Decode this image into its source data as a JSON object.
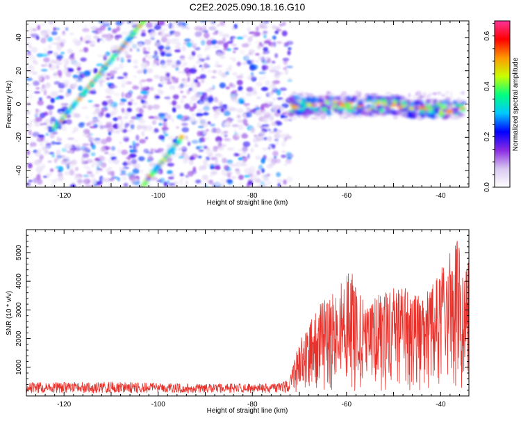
{
  "title": "C2E2.2025.090.18.16.G10",
  "chart_data": [
    {
      "type": "heatmap",
      "xlabel": "Height of straight line (km)",
      "ylabel": "Frequency (Hz)",
      "xlim": [
        -128,
        -34
      ],
      "ylim": [
        -50,
        50
      ],
      "x_ticks": [
        "-120",
        "-100",
        "-80",
        "-60",
        "-40"
      ],
      "y_ticks": [
        "-40",
        "-20",
        "0",
        "20",
        "40"
      ],
      "colorbar": {
        "label": "Normalized spectral amplitude",
        "range": [
          0,
          0.66
        ],
        "ticks": [
          "0.0",
          "0.2",
          "0.4",
          "0.6"
        ],
        "colors": [
          "#ffffff",
          "#d8c8f0",
          "#8a2be2",
          "#0000ff",
          "#00c8ff",
          "#00ff80",
          "#c8ff00",
          "#ff9900",
          "#ff0000",
          "#ff3399"
        ]
      },
      "features": {
        "diagonal_streak": {
          "x": [
            -122.5,
            -103
          ],
          "y": [
            -16,
            50
          ]
        },
        "diagonal_streak_lower": {
          "x": [
            -103.5,
            -95
          ],
          "y": [
            -50,
            -20
          ]
        },
        "horizontal_band": {
          "x": [
            -72,
            -35
          ],
          "y": [
            -4,
            4
          ],
          "peak_value": 0.66
        },
        "noise_region_end_x": -72
      }
    },
    {
      "type": "line",
      "xlabel": "Height of straight line (km)",
      "ylabel": "SNR (10 * v/v)",
      "xlim": [
        -128,
        -34
      ],
      "ylim": [
        0,
        5800
      ],
      "x_ticks": [
        "-120",
        "-100",
        "-80",
        "-60",
        "-40"
      ],
      "y_ticks": [
        "1000",
        "2000",
        "3000",
        "4000",
        "5000"
      ],
      "series": [
        {
          "color": "#e8312b",
          "profile": {
            "x": [
              -128,
              -110,
              -90,
              -75,
              -72,
              -70,
              -66,
              -62,
              -59,
              -56,
              -52,
              -48,
              -44,
              -40,
              -38,
              -36,
              -35
            ],
            "y": [
              450,
              480,
              400,
              420,
              600,
              1800,
              3000,
              3600,
              4300,
              3000,
              3500,
              3800,
              3300,
              4200,
              4800,
              5800,
              4600
            ]
          }
        }
      ]
    }
  ]
}
